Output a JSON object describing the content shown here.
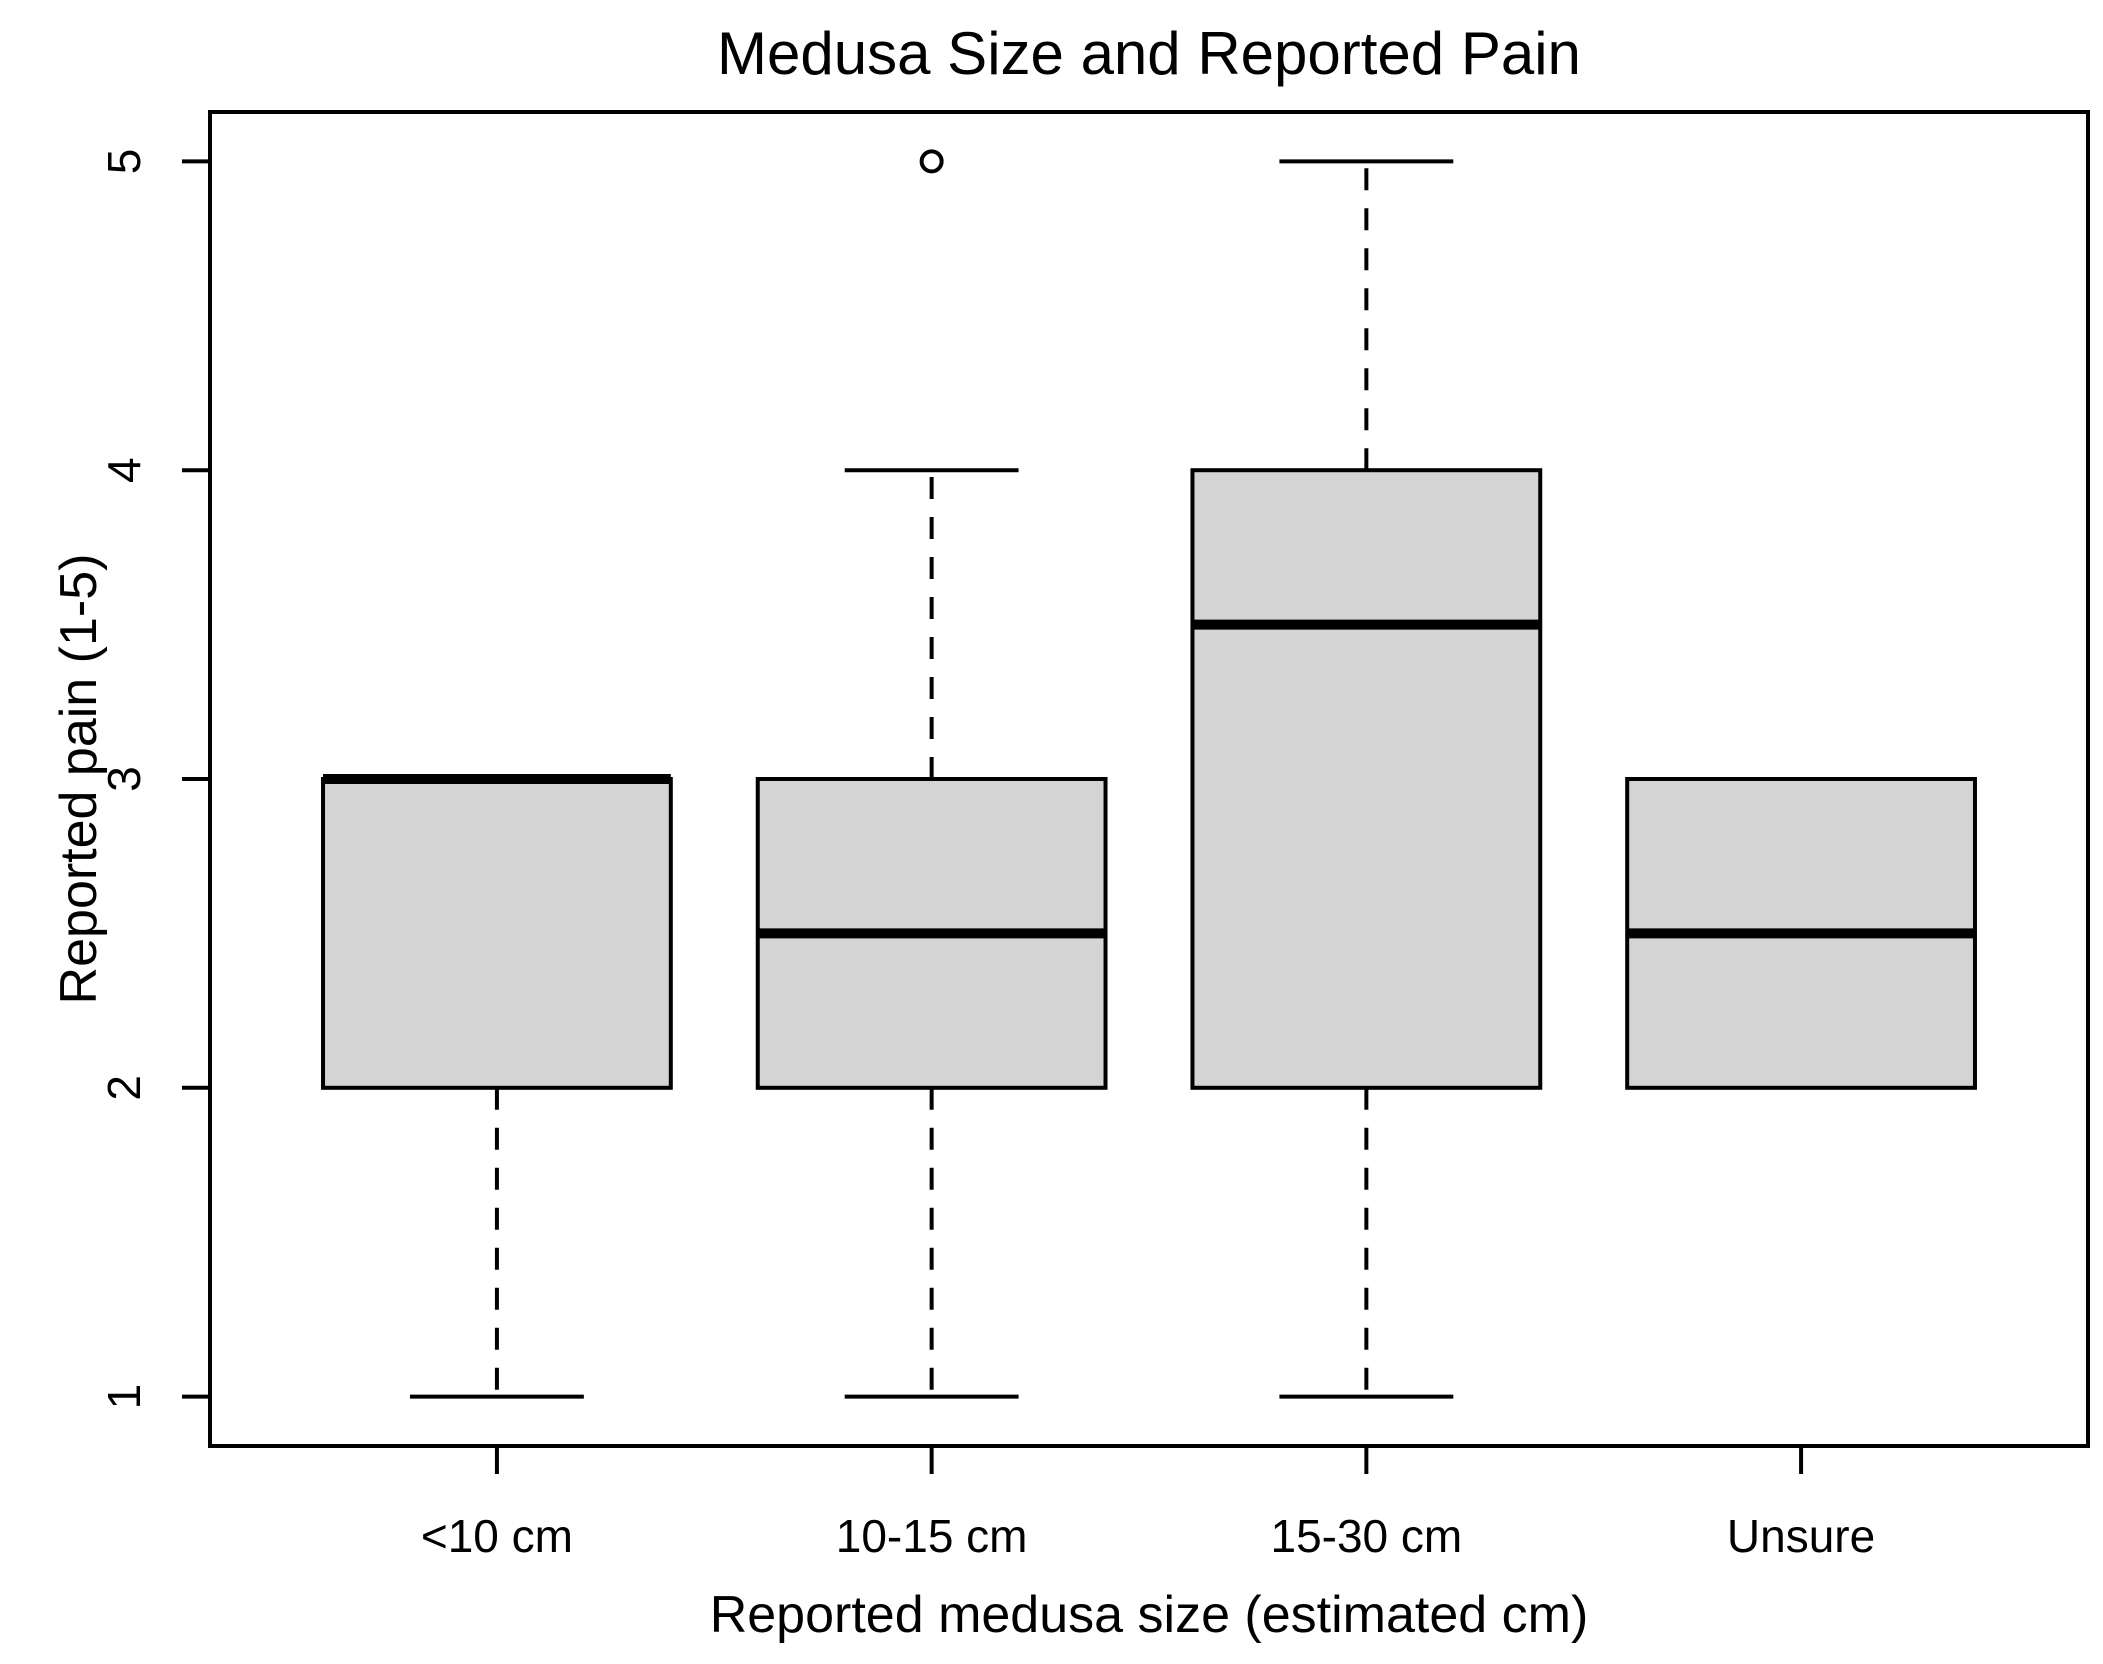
{
  "page": {
    "background_color": "#ffffff",
    "foreground_color": "#000000"
  },
  "chart_data": {
    "type": "boxplot",
    "title": "Medusa Size and Reported Pain",
    "xlabel": "Reported medusa size (estimated cm)",
    "ylabel": "Reported pain (1-5)",
    "categories": [
      "<10 cm",
      "10-15 cm",
      "15-30 cm",
      "Unsure"
    ],
    "yticks": [
      "1",
      "2",
      "3",
      "4",
      "5"
    ],
    "ylim": [
      0.84,
      5.16
    ],
    "grid": false,
    "legend": "none",
    "orientation": "vertical",
    "series": [
      {
        "category": "<10 cm",
        "lower_whisker": 1,
        "q1": 2,
        "median": 3,
        "q3": 3,
        "upper_whisker": 3,
        "outliers": []
      },
      {
        "category": "10-15 cm",
        "lower_whisker": 1,
        "q1": 2,
        "median": 2.5,
        "q3": 3,
        "upper_whisker": 4,
        "outliers": [
          5
        ]
      },
      {
        "category": "15-30 cm",
        "lower_whisker": 1,
        "q1": 2,
        "median": 3.5,
        "q3": 4,
        "upper_whisker": 5,
        "outliers": []
      },
      {
        "category": "Unsure",
        "lower_whisker": 2,
        "q1": 2,
        "median": 2.5,
        "q3": 3,
        "upper_whisker": 3,
        "outliers": []
      }
    ],
    "style": {
      "box_fill": "#d4d4d4",
      "line_color": "#000000",
      "whiskers_dashed": true,
      "outlier_marker": "open-circle"
    }
  }
}
